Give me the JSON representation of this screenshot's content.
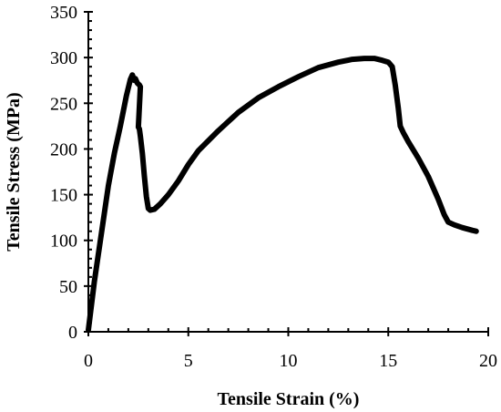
{
  "chart_data": {
    "type": "line",
    "title": "",
    "xlabel": "Tensile Strain (%)",
    "ylabel": "Tensile Stress (MPa)",
    "xlim": [
      0,
      20
    ],
    "ylim": [
      0,
      350
    ],
    "x_ticks": [
      0,
      5,
      10,
      15,
      20
    ],
    "y_ticks": [
      0,
      50,
      100,
      150,
      200,
      250,
      300,
      350
    ],
    "x_minor_step": 1,
    "y_minor_step": 10,
    "grid": false,
    "legend": "none",
    "line_color": "#000000",
    "series": [
      {
        "x": [
          0,
          0.3,
          0.7,
          1.0,
          1.3,
          1.6,
          1.9,
          2.1,
          2.2,
          2.3,
          2.35,
          2.45,
          2.55,
          2.6,
          2.5,
          2.55,
          2.6,
          2.7,
          2.8,
          2.9,
          3.0,
          3.1,
          3.3,
          3.6,
          4.0,
          4.5,
          5.0,
          5.5,
          6.5,
          7.5,
          8.5,
          9.5,
          10.5,
          11.5,
          12.5,
          13.2,
          13.8,
          14.3,
          14.7,
          15.0,
          15.2,
          15.35,
          15.5,
          15.6,
          15.75,
          16.0,
          16.5,
          17.0,
          17.5,
          17.8,
          18.0,
          18.3,
          18.7,
          19.2,
          19.4
        ],
        "y": [
          2,
          55,
          115,
          160,
          195,
          225,
          258,
          276,
          281,
          275,
          277,
          272,
          270,
          268,
          224,
          222,
          214,
          195,
          170,
          148,
          135,
          133,
          134,
          140,
          150,
          165,
          183,
          198,
          220,
          240,
          256,
          268,
          279,
          289,
          295,
          298,
          299,
          299,
          297,
          295,
          290,
          270,
          245,
          225,
          218,
          208,
          190,
          170,
          145,
          128,
          120,
          117,
          114,
          111,
          110
        ]
      }
    ]
  }
}
